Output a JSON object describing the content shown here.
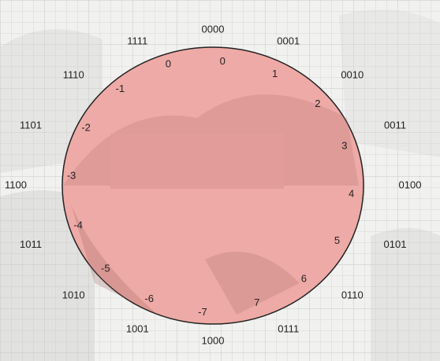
{
  "diagram": {
    "fill_color": "#eeaaa6",
    "stroke_color": "#222222",
    "outer_labels": [
      "0000",
      "0001",
      "0010",
      "0011",
      "0100",
      "0101",
      "0110",
      "0111",
      "1000",
      "1001",
      "1010",
      "1011",
      "1100",
      "1101",
      "1110",
      "1111"
    ],
    "right_inner_labels": [
      "0",
      "1",
      "2",
      "3",
      "4",
      "5",
      "6",
      "7"
    ],
    "left_inner_labels": [
      "0",
      "-1",
      "-2",
      "-3",
      "-4",
      "-5",
      "-6",
      "-7"
    ]
  }
}
